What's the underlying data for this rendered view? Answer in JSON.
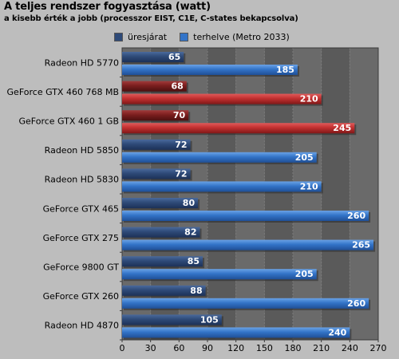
{
  "chart_data": {
    "type": "bar",
    "orientation": "horizontal",
    "title": "A teljes rendszer fogyasztása (watt)",
    "subtitle": "a kisebb érték a jobb (processzor EIST, C1E, C-states bekapcsolva)",
    "categories": [
      "Radeon HD 5770",
      "GeForce GTX 460 768 MB",
      "GeForce GTX 460 1 GB",
      "Radeon HD 5850",
      "Radeon HD 5830",
      "GeForce GTX 465",
      "GeForce GTX 275",
      "GeForce 9800 GT",
      "GeForce GTX 260",
      "Radeon HD 4870"
    ],
    "highlighted_categories": [
      "GeForce GTX 460 768 MB",
      "GeForce GTX 460 1 GB"
    ],
    "series": [
      {
        "name": "üresjárat",
        "values": [
          65,
          68,
          70,
          72,
          72,
          80,
          82,
          85,
          88,
          105
        ]
      },
      {
        "name": "terhelve (Metro 2033)",
        "values": [
          185,
          210,
          245,
          205,
          210,
          260,
          265,
          205,
          260,
          240
        ]
      }
    ],
    "xlim": [
      0,
      270
    ],
    "xticks": [
      0,
      30,
      60,
      90,
      120,
      150,
      180,
      210,
      240,
      270
    ],
    "legend": "top",
    "grid": true,
    "colors": {
      "idle": "#2e4a78",
      "load": "#3374c8",
      "idle_highlight": "#7a1e1e",
      "load_highlight": "#c23030",
      "plot_bg_odd": "#5a5a5a",
      "plot_bg_even": "#6a6a6a"
    }
  }
}
